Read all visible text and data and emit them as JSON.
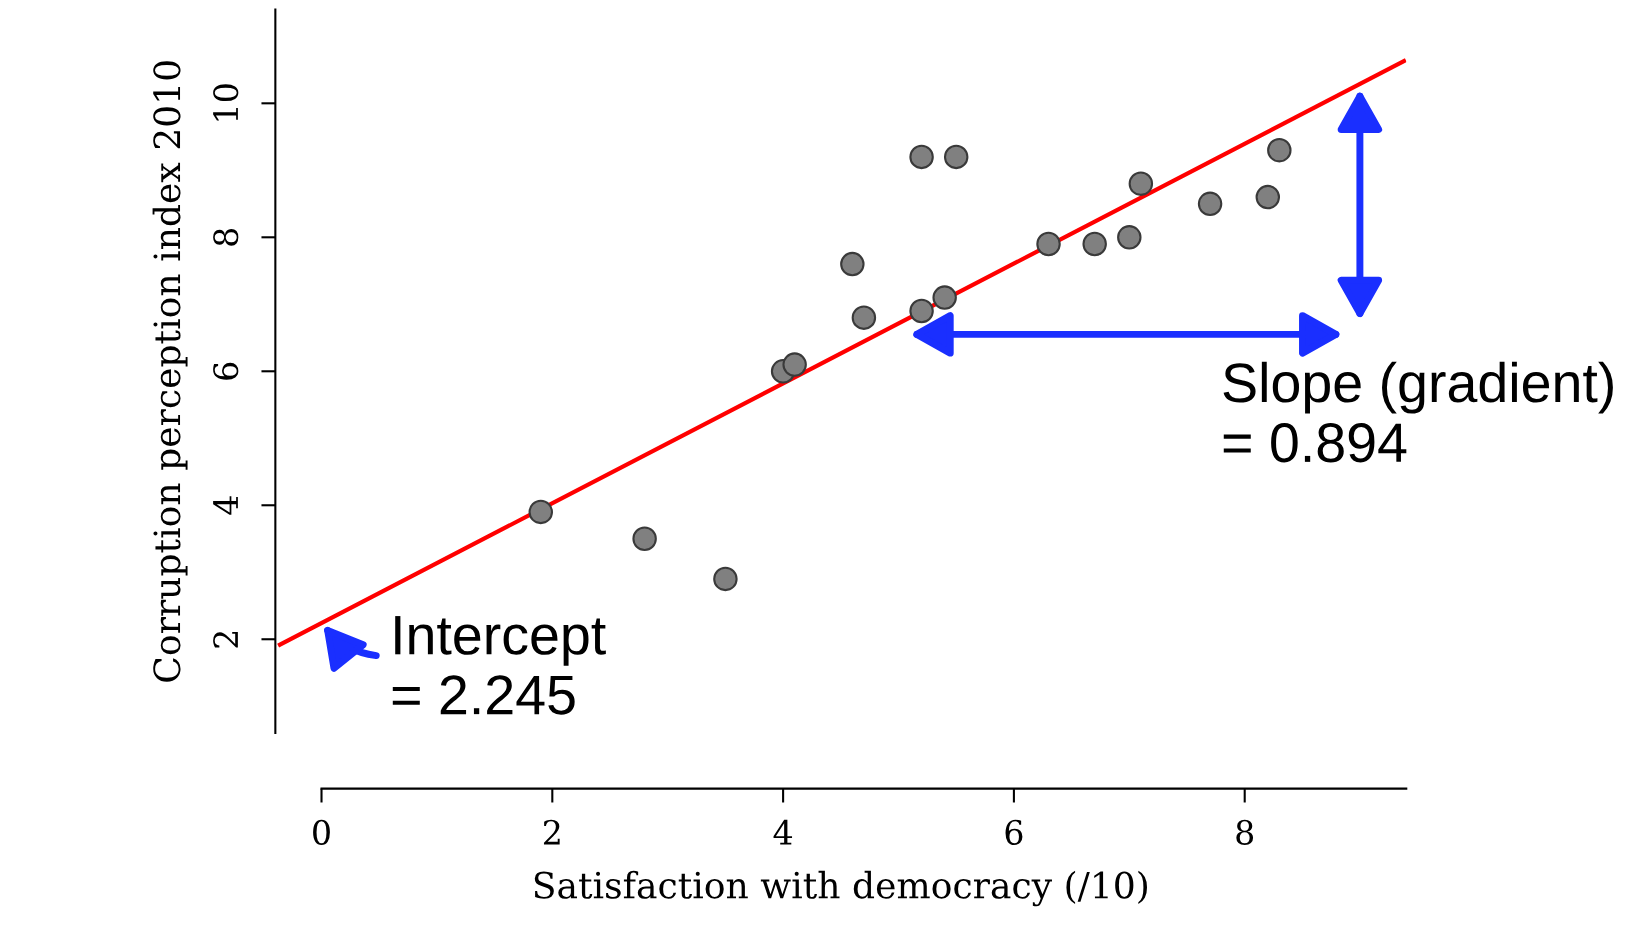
{
  "chart_data": {
    "type": "scatter",
    "xlabel": "Satisfaction with democracy (/10)",
    "ylabel": "Corruption perception index 2010",
    "xlim": [
      -0.4,
      9.4
    ],
    "ylim": [
      0.6,
      11.4
    ],
    "xticks": [
      0,
      2,
      4,
      6,
      8
    ],
    "yticks": [
      2,
      4,
      6,
      8,
      10
    ],
    "grid": false,
    "series": [
      {
        "color": "#808080",
        "x": [
          1.9,
          2.8,
          3.5,
          4.0,
          4.1,
          4.6,
          4.7,
          5.2,
          5.5,
          5.2,
          5.4,
          6.3,
          6.7,
          7.0,
          7.1,
          7.7,
          8.2,
          8.3
        ],
        "values": [
          3.9,
          3.5,
          2.9,
          6.0,
          6.1,
          7.6,
          6.8,
          9.2,
          9.2,
          6.9,
          7.1,
          7.9,
          7.9,
          8.0,
          8.8,
          8.5,
          8.6,
          9.3
        ]
      },
      {
        "type": "line",
        "color": "#ff0000",
        "x": [
          -0.36,
          9.38
        ],
        "values": [
          1.92,
          10.63
        ]
      }
    ],
    "annotations": [
      {
        "text": "Intercept\n= 2.245",
        "x": 0,
        "y": 2.245
      },
      "Slope (gradient)\n= 0.894"
    ]
  }
}
